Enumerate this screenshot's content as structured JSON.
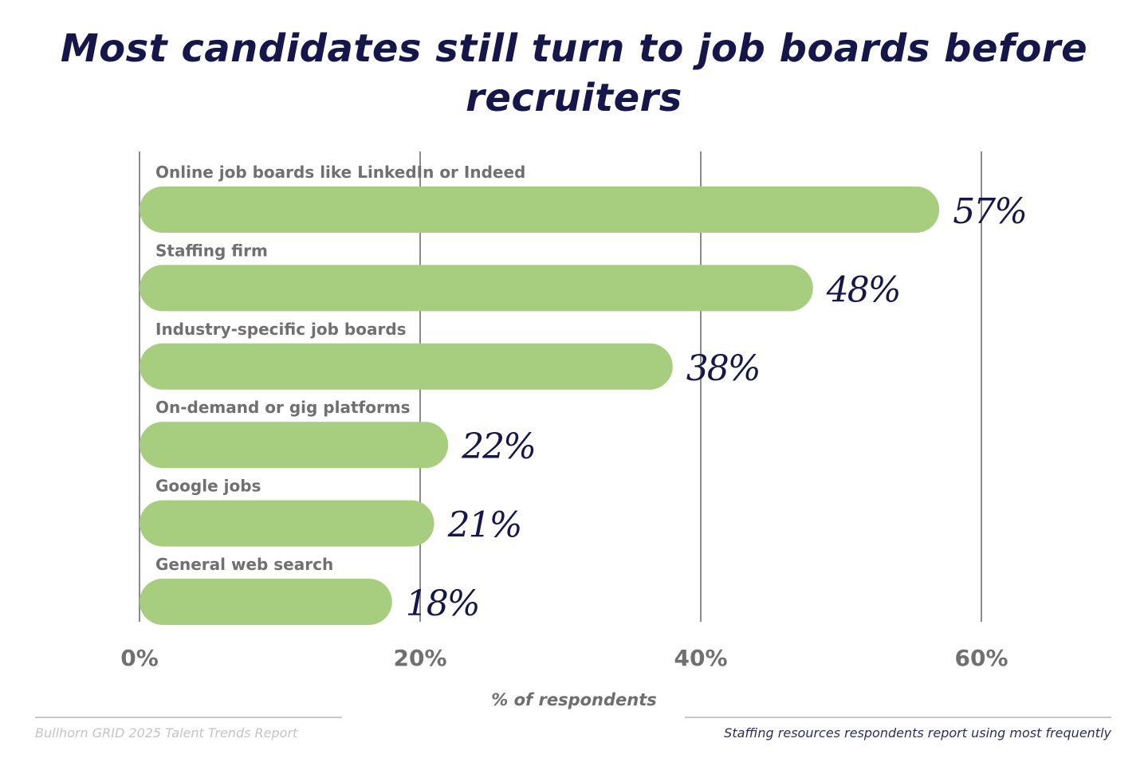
{
  "chart_data": {
    "type": "bar",
    "orientation": "horizontal",
    "title": "Most candidates still turn to job boards before recruiters",
    "categories": [
      "Online job boards like LinkedIn or Indeed",
      "Staffing firm",
      "Industry-specific job boards",
      "On-demand or gig platforms",
      "Google jobs",
      "General web search"
    ],
    "values": [
      57,
      48,
      38,
      22,
      21,
      18
    ],
    "data_labels": [
      "57%",
      "48%",
      "38%",
      "22%",
      "21%",
      "18%"
    ],
    "xlabel": "% of respondents",
    "xlim": [
      0,
      60
    ],
    "xticks": [
      0,
      20,
      40,
      60
    ],
    "xtick_labels": [
      "0%",
      "20%",
      "40%",
      "60%"
    ],
    "grid": true,
    "bar_color": "#a6ce7e",
    "title_color": "#15174a"
  },
  "footer": {
    "source": "Bullhorn GRID 2025 Talent Trends Report",
    "note": "Staffing resources respondents report using most frequently"
  }
}
